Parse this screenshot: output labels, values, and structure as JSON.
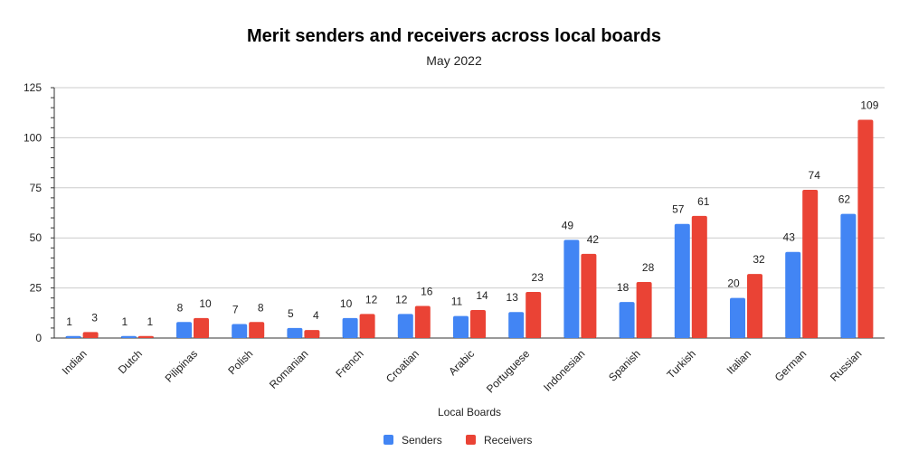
{
  "chart_data": {
    "type": "bar",
    "title": "Merit senders and receivers across local boards",
    "subtitle": "May 2022",
    "xlabel": "Local Boards",
    "ylabel": "",
    "ylim": [
      0,
      125
    ],
    "yticks": [
      0,
      25,
      50,
      75,
      100,
      125
    ],
    "grid": true,
    "legend_position": "bottom",
    "categories": [
      "Indian",
      "Dutch",
      "Pilipinas",
      "Polish",
      "Romanian",
      "French",
      "Croatian",
      "Arabic",
      "Portuguese",
      "Indonesian",
      "Spanish",
      "Turkish",
      "Italian",
      "German",
      "Russian"
    ],
    "series": [
      {
        "name": "Senders",
        "color": "#4285f4",
        "values": [
          1,
          1,
          8,
          7,
          5,
          10,
          12,
          11,
          13,
          49,
          18,
          57,
          20,
          43,
          62
        ]
      },
      {
        "name": "Receivers",
        "color": "#ea4335",
        "values": [
          3,
          1,
          10,
          8,
          4,
          12,
          16,
          14,
          23,
          42,
          28,
          61,
          32,
          74,
          109
        ]
      }
    ]
  }
}
